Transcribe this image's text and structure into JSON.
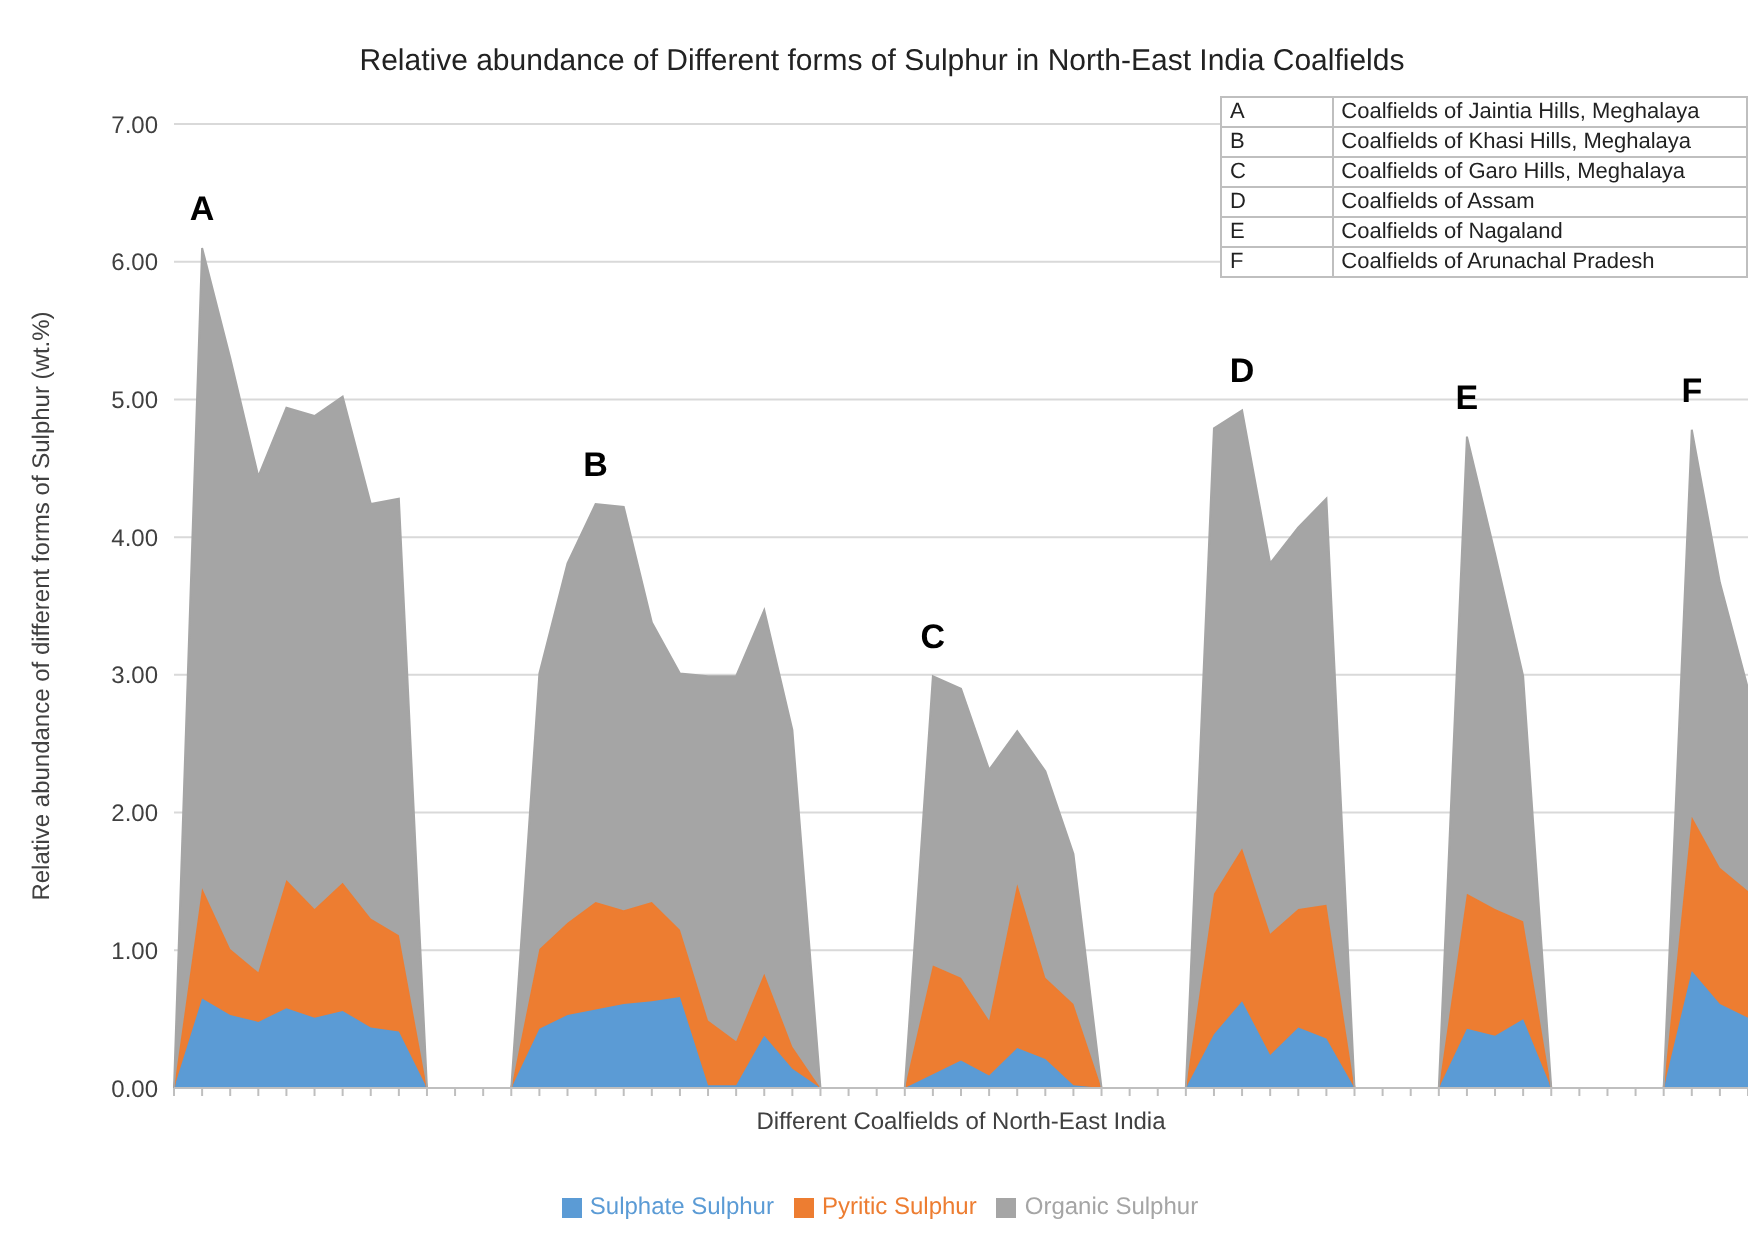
{
  "chart_data": {
    "type": "area",
    "stacked": true,
    "title": "Relative abundance of Different forms of Sulphur in North-East India Coalfields",
    "xlabel": "Different Coalfields of North-East India",
    "ylabel": "Relative abundance of different forms of Sulphur  (wt.%)",
    "categories": [
      null,
      null,
      null,
      null,
      null,
      null,
      null,
      null,
      null,
      null,
      null,
      null,
      null,
      null,
      null,
      null,
      null,
      null,
      null,
      null,
      null,
      null,
      null,
      null,
      null,
      null,
      null,
      null,
      null,
      null,
      null,
      null,
      null,
      null,
      null,
      null,
      null,
      null,
      null,
      null,
      null,
      null,
      null,
      null,
      null,
      null,
      null,
      null,
      null,
      null,
      null,
      null,
      null,
      null,
      null,
      null,
      null
    ],
    "series": [
      {
        "name": "Sulphate Sulphur",
        "color": "#5b9bd5",
        "values": [
          0,
          0.65,
          0.53,
          0.48,
          0.58,
          0.51,
          0.56,
          0.44,
          0.41,
          0,
          0,
          0,
          0,
          0.43,
          0.53,
          0.57,
          0.61,
          0.63,
          0.66,
          0.02,
          0.02,
          0.38,
          0.14,
          0,
          0,
          0,
          0,
          0.1,
          0.2,
          0.09,
          0.29,
          0.21,
          0.02,
          0,
          0,
          0,
          0,
          0.39,
          0.63,
          0.24,
          0.44,
          0.36,
          0,
          0,
          0,
          0,
          0.43,
          0.38,
          0.5,
          0,
          0,
          0,
          0,
          0,
          0.85,
          0.61,
          0.51
        ]
      },
      {
        "name": "Pyritic Sulphur",
        "color": "#ed7d31",
        "values": [
          0,
          0.8,
          0.48,
          0.36,
          0.93,
          0.79,
          0.93,
          0.79,
          0.7,
          0,
          0,
          0,
          0,
          0.58,
          0.67,
          0.78,
          0.68,
          0.72,
          0.49,
          0.47,
          0.32,
          0.45,
          0.16,
          0,
          0,
          0,
          0,
          0.79,
          0.6,
          0.4,
          1.19,
          0.59,
          0.59,
          0,
          0,
          0,
          0,
          1.02,
          1.11,
          0.88,
          0.86,
          0.97,
          0,
          0,
          0,
          0,
          0.98,
          0.92,
          0.71,
          0,
          0,
          0,
          0,
          0,
          1.12,
          0.99,
          0.92
        ]
      },
      {
        "name": "Organic Sulphur",
        "color": "#a5a5a5",
        "values": [
          0,
          4.65,
          4.29,
          3.6,
          3.43,
          3.58,
          3.53,
          3.01,
          3.17,
          0,
          0,
          0,
          0,
          2.0,
          2.61,
          2.89,
          2.93,
          2.03,
          1.86,
          2.5,
          2.65,
          2.64,
          2.3,
          0,
          0,
          0,
          0,
          2.1,
          2.1,
          1.82,
          1.11,
          1.5,
          1.09,
          0,
          0,
          0,
          0,
          3.38,
          3.18,
          2.69,
          2.77,
          2.95,
          0,
          0,
          0,
          0,
          3.32,
          2.58,
          1.78,
          0,
          0,
          0,
          0,
          0,
          2.81,
          2.07,
          1.47
        ]
      }
    ],
    "ylim": [
      0,
      7
    ],
    "yticks": [
      {
        "value": 0,
        "label": "0.00"
      },
      {
        "value": 1,
        "label": "1.00"
      },
      {
        "value": 2,
        "label": "2.00"
      },
      {
        "value": 3,
        "label": "3.00"
      },
      {
        "value": 4,
        "label": "4.00"
      },
      {
        "value": 5,
        "label": "5.00"
      },
      {
        "value": 6,
        "label": "6.00"
      },
      {
        "value": 7,
        "label": "7.00"
      }
    ],
    "grid": "y",
    "legend": "bottom",
    "annotations": [
      "A",
      "B",
      "C",
      "D",
      "E",
      "F",
      "Coalfields of Jaintia Hills, Meghalaya",
      "Coalfields of Khasi Hills, Meghalaya",
      "Coalfields of Garo Hills, Meghalaya",
      "Coalfields of Assam",
      "Coalfields of Nagaland",
      "Coalfields of Arunachal Pradesh"
    ]
  }
}
